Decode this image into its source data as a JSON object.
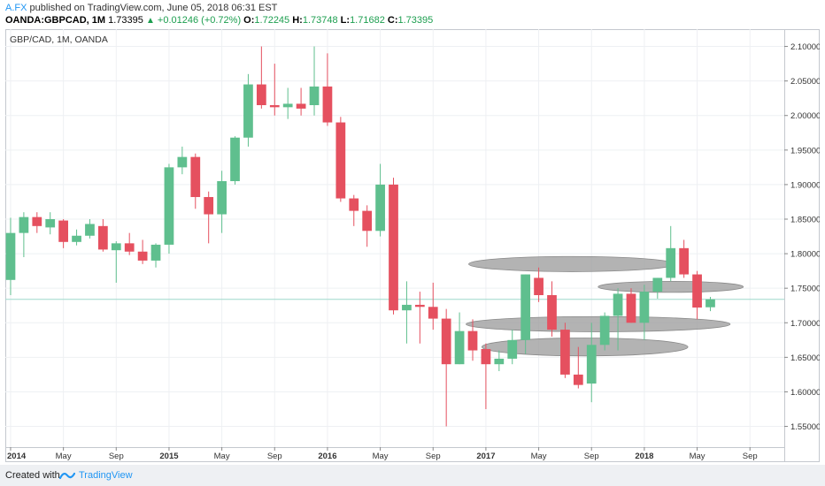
{
  "header": {
    "author": "A.FX",
    "published_text": "published on TradingView.com, June 05, 2018 06:31 EST",
    "symbol": "OANDA:GBPCAD, 1M",
    "price": "1.73395",
    "change": "+0.01246 (+0.72%)",
    "o_label": "O:",
    "o_value": "1.72245",
    "h_label": "H:",
    "h_value": "1.73748",
    "l_label": "L:",
    "l_value": "1.71682",
    "c_label": "C:",
    "c_value": "1.73395"
  },
  "footer": {
    "created_with": "Created with",
    "brand": "TradingView"
  },
  "colors": {
    "up": "#5fbf8e",
    "down": "#e5505f",
    "ellipse": "#9e9e9e",
    "grid": "#eef0f3",
    "price_line": "#9ed9cc",
    "accent": "#2196f3"
  },
  "chart_data": {
    "type": "candlestick",
    "title": "GBP/CAD, 1M, OANDA",
    "ylim": [
      1.52,
      2.125
    ],
    "y_ticks": [
      1.55,
      1.6,
      1.65,
      1.7,
      1.75,
      1.8,
      1.85,
      1.9,
      1.95,
      2.0,
      2.05,
      2.1
    ],
    "y_tick_labels": [
      "1.55000",
      "1.60000",
      "1.65000",
      "1.70000",
      "1.75000",
      "1.80000",
      "1.85000",
      "1.90000",
      "1.95000",
      "2.00000",
      "2.05000",
      "2.10000"
    ],
    "x_ticks": [
      {
        "label": "2014",
        "i": 0,
        "bold": true
      },
      {
        "label": "May",
        "i": 4,
        "bold": false
      },
      {
        "label": "Sep",
        "i": 8,
        "bold": false
      },
      {
        "label": "2015",
        "i": 12,
        "bold": true
      },
      {
        "label": "May",
        "i": 16,
        "bold": false
      },
      {
        "label": "Sep",
        "i": 20,
        "bold": false
      },
      {
        "label": "2016",
        "i": 24,
        "bold": true
      },
      {
        "label": "May",
        "i": 28,
        "bold": false
      },
      {
        "label": "Sep",
        "i": 32,
        "bold": false
      },
      {
        "label": "2017",
        "i": 36,
        "bold": true
      },
      {
        "label": "May",
        "i": 40,
        "bold": false
      },
      {
        "label": "Sep",
        "i": 44,
        "bold": false
      },
      {
        "label": "2018",
        "i": 48,
        "bold": true
      },
      {
        "label": "May",
        "i": 52,
        "bold": false
      },
      {
        "label": "Sep",
        "i": 56,
        "bold": false
      }
    ],
    "x_range": [
      -0.4,
      58.6
    ],
    "last_price": 1.73395,
    "grid": true,
    "candles": [
      {
        "d": "2014-01",
        "o": 1.762,
        "h": 1.852,
        "l": 1.74,
        "c": 1.83
      },
      {
        "d": "2014-02",
        "o": 1.83,
        "h": 1.86,
        "l": 1.795,
        "c": 1.853
      },
      {
        "d": "2014-03",
        "o": 1.853,
        "h": 1.86,
        "l": 1.83,
        "c": 1.84
      },
      {
        "d": "2014-04",
        "o": 1.838,
        "h": 1.86,
        "l": 1.828,
        "c": 1.85
      },
      {
        "d": "2014-05",
        "o": 1.848,
        "h": 1.85,
        "l": 1.808,
        "c": 1.817
      },
      {
        "d": "2014-06",
        "o": 1.817,
        "h": 1.835,
        "l": 1.812,
        "c": 1.826
      },
      {
        "d": "2014-07",
        "o": 1.826,
        "h": 1.85,
        "l": 1.822,
        "c": 1.843
      },
      {
        "d": "2014-08",
        "o": 1.84,
        "h": 1.85,
        "l": 1.803,
        "c": 1.806
      },
      {
        "d": "2014-09",
        "o": 1.805,
        "h": 1.818,
        "l": 1.758,
        "c": 1.815
      },
      {
        "d": "2014-10",
        "o": 1.815,
        "h": 1.83,
        "l": 1.798,
        "c": 1.803
      },
      {
        "d": "2014-11",
        "o": 1.803,
        "h": 1.82,
        "l": 1.785,
        "c": 1.79
      },
      {
        "d": "2014-12",
        "o": 1.79,
        "h": 1.815,
        "l": 1.78,
        "c": 1.813
      },
      {
        "d": "2015-01",
        "o": 1.813,
        "h": 1.93,
        "l": 1.8,
        "c": 1.925
      },
      {
        "d": "2015-02",
        "o": 1.925,
        "h": 1.955,
        "l": 1.915,
        "c": 1.94
      },
      {
        "d": "2015-03",
        "o": 1.94,
        "h": 1.945,
        "l": 1.865,
        "c": 1.882
      },
      {
        "d": "2015-04",
        "o": 1.882,
        "h": 1.89,
        "l": 1.815,
        "c": 1.857
      },
      {
        "d": "2015-05",
        "o": 1.857,
        "h": 1.92,
        "l": 1.83,
        "c": 1.905
      },
      {
        "d": "2015-06",
        "o": 1.905,
        "h": 1.97,
        "l": 1.9,
        "c": 1.968
      },
      {
        "d": "2015-07",
        "o": 1.968,
        "h": 2.06,
        "l": 1.955,
        "c": 2.045
      },
      {
        "d": "2015-08",
        "o": 2.045,
        "h": 2.1,
        "l": 2.01,
        "c": 2.015
      },
      {
        "d": "2015-09",
        "o": 2.015,
        "h": 2.075,
        "l": 2.0,
        "c": 2.012
      },
      {
        "d": "2015-10",
        "o": 2.012,
        "h": 2.04,
        "l": 1.995,
        "c": 2.017
      },
      {
        "d": "2015-11",
        "o": 2.017,
        "h": 2.04,
        "l": 2.0,
        "c": 2.01
      },
      {
        "d": "2015-12",
        "o": 2.015,
        "h": 2.1,
        "l": 2.0,
        "c": 2.042
      },
      {
        "d": "2016-01",
        "o": 2.042,
        "h": 2.09,
        "l": 1.985,
        "c": 1.99
      },
      {
        "d": "2016-02",
        "o": 1.99,
        "h": 1.998,
        "l": 1.875,
        "c": 1.88
      },
      {
        "d": "2016-03",
        "o": 1.88,
        "h": 1.885,
        "l": 1.84,
        "c": 1.862
      },
      {
        "d": "2016-04",
        "o": 1.862,
        "h": 1.87,
        "l": 1.81,
        "c": 1.833
      },
      {
        "d": "2016-05",
        "o": 1.833,
        "h": 1.93,
        "l": 1.825,
        "c": 1.9
      },
      {
        "d": "2016-06",
        "o": 1.9,
        "h": 1.91,
        "l": 1.712,
        "c": 1.718
      },
      {
        "d": "2016-07",
        "o": 1.718,
        "h": 1.76,
        "l": 1.67,
        "c": 1.726
      },
      {
        "d": "2016-08",
        "o": 1.726,
        "h": 1.745,
        "l": 1.67,
        "c": 1.723
      },
      {
        "d": "2016-09",
        "o": 1.723,
        "h": 1.758,
        "l": 1.69,
        "c": 1.706
      },
      {
        "d": "2016-10",
        "o": 1.706,
        "h": 1.72,
        "l": 1.55,
        "c": 1.64
      },
      {
        "d": "2016-11",
        "o": 1.64,
        "h": 1.715,
        "l": 1.64,
        "c": 1.688
      },
      {
        "d": "2016-12",
        "o": 1.688,
        "h": 1.705,
        "l": 1.645,
        "c": 1.66
      },
      {
        "d": "2017-01",
        "o": 1.662,
        "h": 1.67,
        "l": 1.575,
        "c": 1.64
      },
      {
        "d": "2017-02",
        "o": 1.64,
        "h": 1.66,
        "l": 1.63,
        "c": 1.648
      },
      {
        "d": "2017-03",
        "o": 1.648,
        "h": 1.69,
        "l": 1.64,
        "c": 1.675
      },
      {
        "d": "2017-04",
        "o": 1.675,
        "h": 1.77,
        "l": 1.655,
        "c": 1.77
      },
      {
        "d": "2017-05",
        "o": 1.765,
        "h": 1.78,
        "l": 1.73,
        "c": 1.74
      },
      {
        "d": "2017-06",
        "o": 1.74,
        "h": 1.76,
        "l": 1.68,
        "c": 1.69
      },
      {
        "d": "2017-07",
        "o": 1.69,
        "h": 1.7,
        "l": 1.62,
        "c": 1.625
      },
      {
        "d": "2017-08",
        "o": 1.625,
        "h": 1.665,
        "l": 1.605,
        "c": 1.61
      },
      {
        "d": "2017-09",
        "o": 1.612,
        "h": 1.7,
        "l": 1.585,
        "c": 1.668
      },
      {
        "d": "2017-10",
        "o": 1.668,
        "h": 1.715,
        "l": 1.66,
        "c": 1.71
      },
      {
        "d": "2017-11",
        "o": 1.71,
        "h": 1.75,
        "l": 1.66,
        "c": 1.742
      },
      {
        "d": "2017-12",
        "o": 1.742,
        "h": 1.75,
        "l": 1.7,
        "c": 1.7
      },
      {
        "d": "2018-01",
        "o": 1.7,
        "h": 1.755,
        "l": 1.675,
        "c": 1.745
      },
      {
        "d": "2018-02",
        "o": 1.745,
        "h": 1.765,
        "l": 1.735,
        "c": 1.765
      },
      {
        "d": "2018-03",
        "o": 1.765,
        "h": 1.84,
        "l": 1.76,
        "c": 1.808
      },
      {
        "d": "2018-04",
        "o": 1.808,
        "h": 1.82,
        "l": 1.765,
        "c": 1.77
      },
      {
        "d": "2018-05",
        "o": 1.77,
        "h": 1.775,
        "l": 1.705,
        "c": 1.722
      },
      {
        "d": "2018-06",
        "o": 1.72245,
        "h": 1.73748,
        "l": 1.71682,
        "c": 1.73395
      }
    ],
    "ellipses": [
      {
        "cx": 42.5,
        "cy": 1.785,
        "rx": 7.8,
        "ry": 0.011
      },
      {
        "cx": 50,
        "cy": 1.752,
        "rx": 5.5,
        "ry": 0.008
      },
      {
        "cx": 44.5,
        "cy": 1.698,
        "rx": 10,
        "ry": 0.011
      },
      {
        "cx": 43.5,
        "cy": 1.665,
        "rx": 7.8,
        "ry": 0.013
      }
    ]
  }
}
